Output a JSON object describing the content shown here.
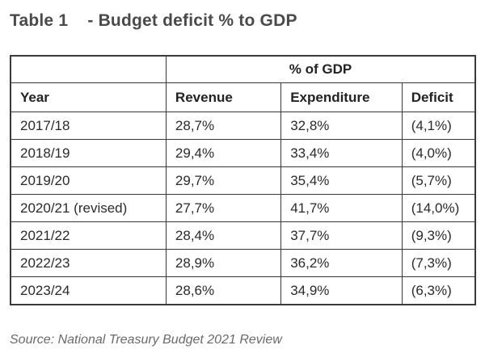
{
  "title": "Table 1    - Budget deficit % to GDP",
  "table": {
    "group_header": "% of GDP",
    "columns": [
      "Year",
      "Revenue",
      "Expenditure",
      "Deficit"
    ],
    "rows": [
      [
        "2017/18",
        "28,7%",
        "32,8%",
        "(4,1%)"
      ],
      [
        "2018/19",
        "29,4%",
        "33,4%",
        "(4,0%)"
      ],
      [
        "2019/20",
        "29,7%",
        "35,4%",
        "(5,7%)"
      ],
      [
        "2020/21 (revised)",
        "27,7%",
        "41,7%",
        "(14,0%)"
      ],
      [
        "2021/22",
        "28,4%",
        "37,7%",
        "(9,3%)"
      ],
      [
        "2022/23",
        "28,9%",
        "36,2%",
        "(7,3%)"
      ],
      [
        "2023/24",
        "28,6%",
        "34,9%",
        "(6,3%)"
      ]
    ]
  },
  "source": "Source: National Treasury Budget 2021 Review"
}
